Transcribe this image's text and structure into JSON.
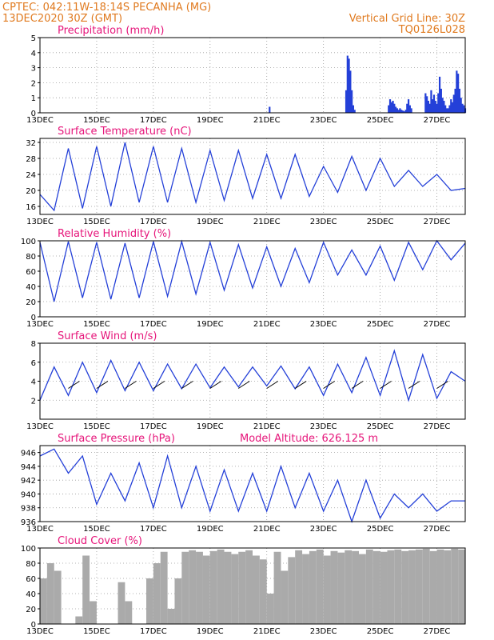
{
  "header": {
    "line1": "CPTEC:  042:11W-18:14S  PECANHA (MG)",
    "line2": "13DEC2020 30Z (GMT)",
    "right1": "Vertical Grid Line: 30Z",
    "right2": "TQ0126L028"
  },
  "colors": {
    "header": "#e07a1f",
    "title": "#e6157a",
    "series": "#2440d8",
    "cloud": "#aaaaaa",
    "grid": "#9a9a9a"
  },
  "chart_data": [
    {
      "type": "bar",
      "title": "Precipitation (mm/h)",
      "xlabels": [
        "13DEC",
        "15DEC",
        "17DEC",
        "19DEC",
        "21DEC",
        "23DEC",
        "25DEC",
        "27DEC"
      ],
      "xlim": [
        0,
        15
      ],
      "ylim": [
        0,
        5
      ],
      "yticks": [
        0,
        1,
        2,
        3,
        4,
        5
      ],
      "x": [
        8.1,
        10.8,
        10.85,
        10.9,
        10.95,
        11.0,
        11.05,
        11.1,
        12.3,
        12.35,
        12.4,
        12.45,
        12.5,
        12.55,
        12.6,
        12.65,
        12.7,
        12.75,
        12.8,
        12.85,
        12.9,
        12.95,
        13.0,
        13.05,
        13.1,
        13.6,
        13.65,
        13.7,
        13.75,
        13.8,
        13.85,
        13.9,
        13.95,
        14.0,
        14.05,
        14.1,
        14.15,
        14.2,
        14.25,
        14.3,
        14.35,
        14.4,
        14.45,
        14.5,
        14.55,
        14.6,
        14.65,
        14.7,
        14.75,
        14.8,
        14.85,
        14.9,
        14.95,
        15.0
      ],
      "values": [
        0.4,
        1.5,
        3.8,
        3.6,
        2.8,
        1.5,
        0.5,
        0.2,
        0.5,
        0.9,
        0.7,
        0.8,
        0.6,
        0.4,
        0.3,
        0.2,
        0.3,
        0.2,
        0.15,
        0.1,
        0.2,
        0.6,
        0.9,
        0.5,
        0.3,
        1.3,
        1.1,
        0.8,
        0.6,
        1.5,
        0.9,
        1.2,
        0.8,
        0.6,
        1.3,
        2.4,
        1.6,
        1.0,
        0.8,
        0.5,
        0.3,
        0.3,
        0.5,
        0.9,
        0.7,
        1.2,
        1.6,
        2.8,
        2.6,
        1.6,
        1.0,
        0.6,
        0.5,
        0.3
      ]
    },
    {
      "type": "line",
      "title": "Surface Temperature (nC)",
      "xlabels": [
        "13DEC",
        "15DEC",
        "17DEC",
        "19DEC",
        "21DEC",
        "23DEC",
        "25DEC",
        "27DEC"
      ],
      "xlim": [
        0,
        15
      ],
      "ylim": [
        14,
        33
      ],
      "yticks": [
        16,
        20,
        24,
        28,
        32
      ],
      "x": [
        0,
        0.5,
        1.0,
        1.5,
        2.0,
        2.5,
        3.0,
        3.5,
        4.0,
        4.5,
        5.0,
        5.5,
        6.0,
        6.5,
        7.0,
        7.5,
        8.0,
        8.5,
        9.0,
        9.5,
        10.0,
        10.5,
        11.0,
        11.5,
        12.0,
        12.5,
        13.0,
        13.5,
        14.0,
        14.5,
        15.0
      ],
      "values": [
        19,
        15,
        30.5,
        15.5,
        31,
        16,
        32,
        17,
        31,
        17,
        30.5,
        17,
        30,
        17.5,
        30,
        18,
        29,
        18,
        29,
        18.5,
        26,
        19.5,
        28.5,
        20,
        28,
        21,
        25,
        21,
        24,
        20,
        20.5
      ]
    },
    {
      "type": "line",
      "title": "Relative Humidity (%)",
      "xlabels": [
        "13DEC",
        "15DEC",
        "17DEC",
        "19DEC",
        "21DEC",
        "23DEC",
        "25DEC",
        "27DEC"
      ],
      "xlim": [
        0,
        15
      ],
      "ylim": [
        0,
        100
      ],
      "yticks": [
        0,
        20,
        40,
        60,
        80,
        100
      ],
      "x": [
        0,
        0.5,
        1.0,
        1.5,
        2.0,
        2.5,
        3.0,
        3.5,
        4.0,
        4.5,
        5.0,
        5.5,
        6.0,
        6.5,
        7.0,
        7.5,
        8.0,
        8.5,
        9.0,
        9.5,
        10.0,
        10.5,
        11.0,
        11.5,
        12.0,
        12.5,
        13.0,
        13.5,
        14.0,
        14.5,
        15.0
      ],
      "values": [
        98,
        20,
        99,
        25,
        98,
        23,
        97,
        25,
        99,
        27,
        99,
        30,
        98,
        35,
        95,
        38,
        92,
        40,
        90,
        45,
        98,
        55,
        88,
        55,
        93,
        48,
        98,
        62,
        100,
        75,
        97
      ]
    },
    {
      "type": "line",
      "title": "Surface Wind (m/s)",
      "xlabels": [
        "13DEC",
        "15DEC",
        "17DEC",
        "19DEC",
        "21DEC",
        "23DEC",
        "25DEC",
        "27DEC"
      ],
      "xlim": [
        0,
        15
      ],
      "ylim": [
        0,
        8
      ],
      "yticks": [
        2,
        4,
        6,
        8
      ],
      "x": [
        0,
        0.5,
        1.0,
        1.5,
        2.0,
        2.5,
        3.0,
        3.5,
        4.0,
        4.5,
        5.0,
        5.5,
        6.0,
        6.5,
        7.0,
        7.5,
        8.0,
        8.5,
        9.0,
        9.5,
        10.0,
        10.5,
        11.0,
        11.5,
        12.0,
        12.5,
        13.0,
        13.5,
        14.0,
        14.5,
        15.0
      ],
      "values": [
        2,
        5.5,
        2.5,
        6,
        2.8,
        6.2,
        3,
        6,
        3,
        5.8,
        3.2,
        5.8,
        3.3,
        5.5,
        3.4,
        5.5,
        3.5,
        5.6,
        3.2,
        5.5,
        2.5,
        5.8,
        2.8,
        6.5,
        2.5,
        7.2,
        2.0,
        6.8,
        2.2,
        5.0,
        4.0
      ]
    },
    {
      "type": "line",
      "title": "Surface Pressure (hPa)",
      "subtitle": "Model Altitude: 626.125  m",
      "xlabels": [
        "13DEC",
        "15DEC",
        "17DEC",
        "19DEC",
        "21DEC",
        "23DEC",
        "25DEC",
        "27DEC"
      ],
      "xlim": [
        0,
        15
      ],
      "ylim": [
        936,
        947
      ],
      "yticks": [
        936,
        938,
        940,
        942,
        944,
        946
      ],
      "x": [
        0,
        0.5,
        1.0,
        1.5,
        2.0,
        2.5,
        3.0,
        3.5,
        4.0,
        4.5,
        5.0,
        5.5,
        6.0,
        6.5,
        7.0,
        7.5,
        8.0,
        8.5,
        9.0,
        9.5,
        10.0,
        10.5,
        11.0,
        11.5,
        12.0,
        12.5,
        13.0,
        13.5,
        14.0,
        14.5,
        15.0
      ],
      "values": [
        945.5,
        946.5,
        943,
        945.5,
        938.5,
        943,
        939,
        944.5,
        938,
        945.5,
        938,
        944,
        937.5,
        943.5,
        937.5,
        943,
        937.5,
        944,
        938,
        943,
        937.5,
        942,
        936,
        942,
        936.5,
        940,
        938,
        940,
        937.5,
        939,
        939
      ]
    },
    {
      "type": "bar",
      "title": "Cloud Cover (%)",
      "xlabels": [
        "13DEC",
        "15DEC",
        "17DEC",
        "19DEC",
        "21DEC",
        "23DEC",
        "25DEC",
        "27DEC"
      ],
      "xlim": [
        0,
        15
      ],
      "ylim": [
        0,
        100
      ],
      "yticks": [
        0,
        20,
        40,
        60,
        80,
        100
      ],
      "x": [
        0.0,
        0.25,
        0.5,
        0.75,
        1.0,
        1.25,
        1.5,
        1.75,
        2.0,
        2.25,
        2.5,
        2.75,
        3.0,
        3.25,
        3.5,
        3.75,
        4.0,
        4.25,
        4.5,
        4.75,
        5.0,
        5.25,
        5.5,
        5.75,
        6.0,
        6.25,
        6.5,
        6.75,
        7.0,
        7.25,
        7.5,
        7.75,
        8.0,
        8.25,
        8.5,
        8.75,
        9.0,
        9.25,
        9.5,
        9.75,
        10.0,
        10.25,
        10.5,
        10.75,
        11.0,
        11.25,
        11.5,
        11.75,
        12.0,
        12.25,
        12.5,
        12.75,
        13.0,
        13.25,
        13.5,
        13.75,
        14.0,
        14.25,
        14.5,
        14.75
      ],
      "values": [
        60,
        80,
        70,
        0,
        0,
        10,
        90,
        30,
        0,
        0,
        0,
        55,
        30,
        0,
        0,
        60,
        80,
        95,
        20,
        60,
        95,
        97,
        95,
        90,
        96,
        98,
        95,
        92,
        95,
        97,
        90,
        85,
        40,
        95,
        70,
        88,
        97,
        92,
        96,
        98,
        90,
        96,
        94,
        97,
        96,
        92,
        98,
        96,
        95,
        97,
        98,
        96,
        97,
        98,
        99,
        96,
        98,
        97,
        99,
        98
      ]
    }
  ]
}
